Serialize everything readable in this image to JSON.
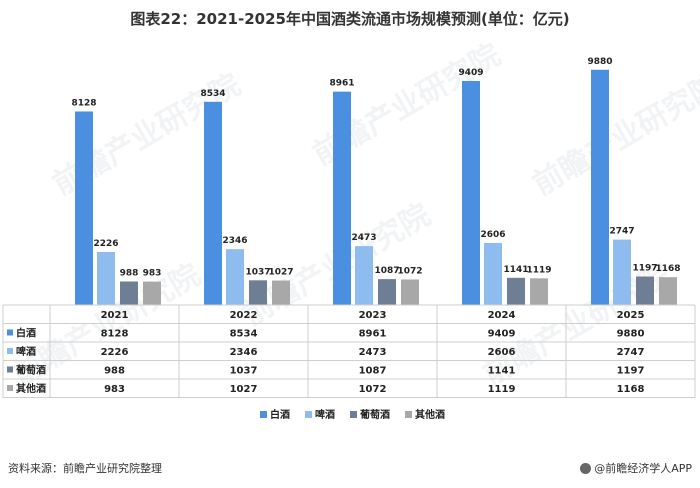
{
  "title": "图表22：2021-2025年中国酒类流通市场规模预测(单位：亿元)",
  "source": "资料来源：前瞻产业研究院整理",
  "brand": "@前瞻经济学人APP",
  "watermark": "前瞻产业研究院",
  "chart_data": {
    "type": "bar",
    "categories": [
      "2021",
      "2022",
      "2023",
      "2024",
      "2025"
    ],
    "series": [
      {
        "name": "白酒",
        "color": "#4a8fe0",
        "values": [
          8128,
          8534,
          8961,
          9409,
          9880
        ]
      },
      {
        "name": "啤酒",
        "color": "#8fbcef",
        "values": [
          2226,
          2346,
          2473,
          2606,
          2747
        ]
      },
      {
        "name": "葡萄酒",
        "color": "#6e7e95",
        "values": [
          988,
          1037,
          1087,
          1141,
          1197
        ]
      },
      {
        "name": "其他酒",
        "color": "#a8a8a8",
        "values": [
          983,
          1027,
          1072,
          1119,
          1168
        ]
      }
    ],
    "data_labels": [
      [
        "8128",
        "8534",
        "8961",
        "9409",
        "9880"
      ],
      [
        "2226",
        "2346",
        "2473",
        "2606",
        "2747"
      ],
      [
        "988",
        "1037",
        "1087",
        "1141",
        "1197"
      ],
      [
        "983",
        "1027",
        "1072",
        "1119",
        "1168"
      ]
    ],
    "ylim": [
      0,
      10500
    ],
    "gridlines": false,
    "legend": "bottom",
    "data_table": true
  }
}
